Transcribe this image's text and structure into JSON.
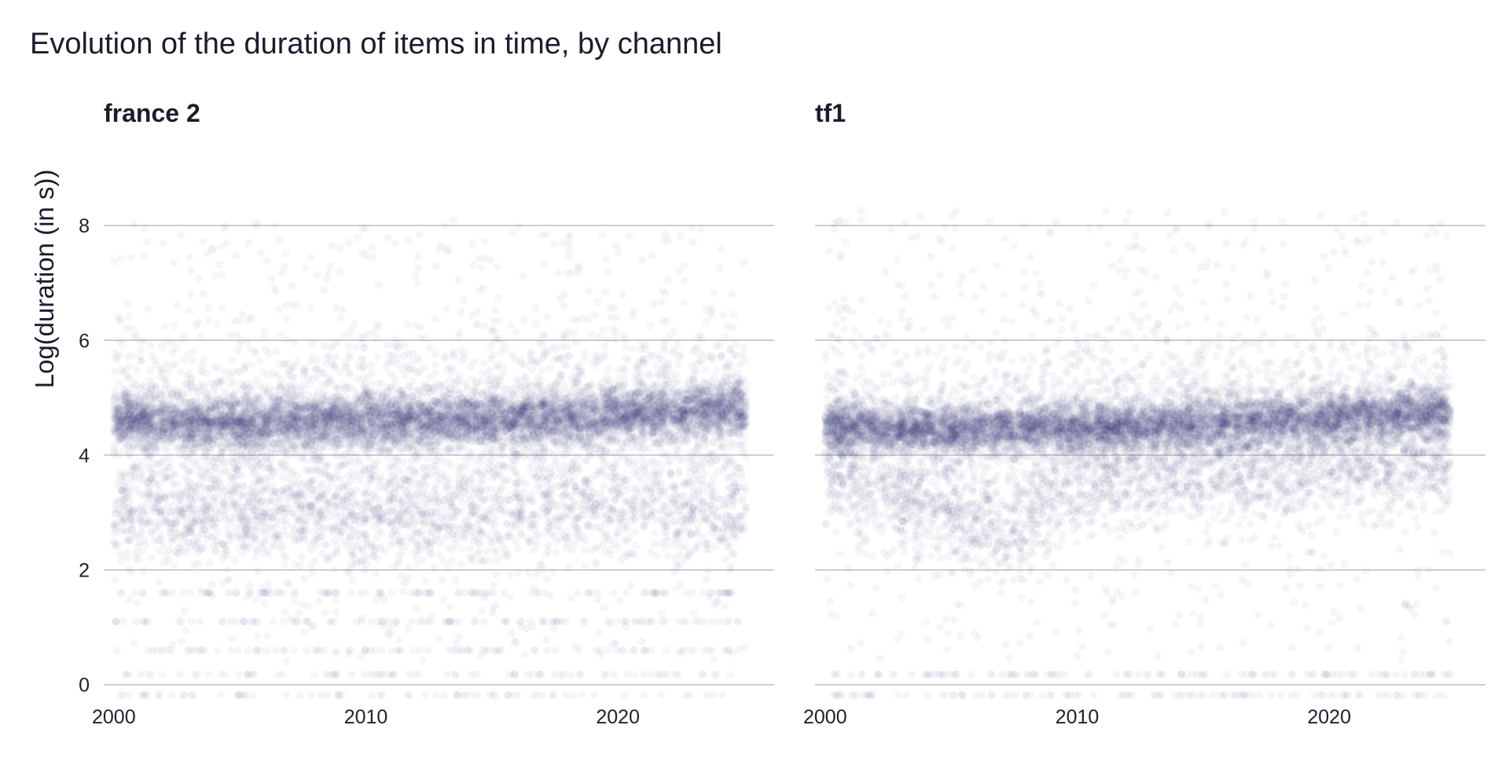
{
  "chart_data": {
    "type": "scatter",
    "title": "Evolution of the duration of items in time, by channel",
    "ylabel": "Log(duration (in s))",
    "xlabel": "",
    "xlim": [
      1999.6,
      2026.2
    ],
    "ylim": [
      -0.25,
      8.85
    ],
    "x_ticks": [
      2000,
      2010,
      2020
    ],
    "x_tick_labels": [
      "2000",
      "2010",
      "2020"
    ],
    "y_ticks": [
      0,
      2,
      4,
      6,
      8
    ],
    "y_tick_labels": [
      "0",
      "2",
      "4",
      "6",
      "8"
    ],
    "grid": "horizontal major gridlines",
    "point_color": "#2c2a6b",
    "point_alpha": 0.045,
    "legend": "none",
    "panels": [
      {
        "name": "france 2",
        "x_range": [
          2000.0,
          2025.1
        ],
        "main_band_center": [
          [
            2000,
            4.6
          ],
          [
            2005,
            4.55
          ],
          [
            2010,
            4.6
          ],
          [
            2015,
            4.62
          ],
          [
            2020,
            4.7
          ],
          [
            2025,
            4.8
          ]
        ],
        "main_band_halfwidth": 0.38,
        "secondary_cluster_center": [
          [
            2000,
            3.0
          ],
          [
            2010,
            2.9
          ],
          [
            2020,
            3.1
          ],
          [
            2025,
            3.0
          ]
        ],
        "discrete_low_levels": [
          1.6,
          1.1,
          0.6,
          0.18,
          -0.18
        ],
        "outlier_max": 8.1
      },
      {
        "name": "tf1",
        "x_range": [
          2000.0,
          2024.8
        ],
        "main_band_center": [
          [
            2000,
            4.5
          ],
          [
            2005,
            4.45
          ],
          [
            2010,
            4.45
          ],
          [
            2015,
            4.55
          ],
          [
            2020,
            4.65
          ],
          [
            2024.8,
            4.75
          ]
        ],
        "main_band_halfwidth": 0.35,
        "secondary_cluster_center": [
          [
            2000,
            3.7
          ],
          [
            2007.5,
            2.6
          ],
          [
            2010,
            3.6
          ],
          [
            2020,
            3.8
          ]
        ],
        "discrete_low_levels": [
          0.18,
          -0.18
        ],
        "outlier_max": 8.3
      }
    ]
  }
}
